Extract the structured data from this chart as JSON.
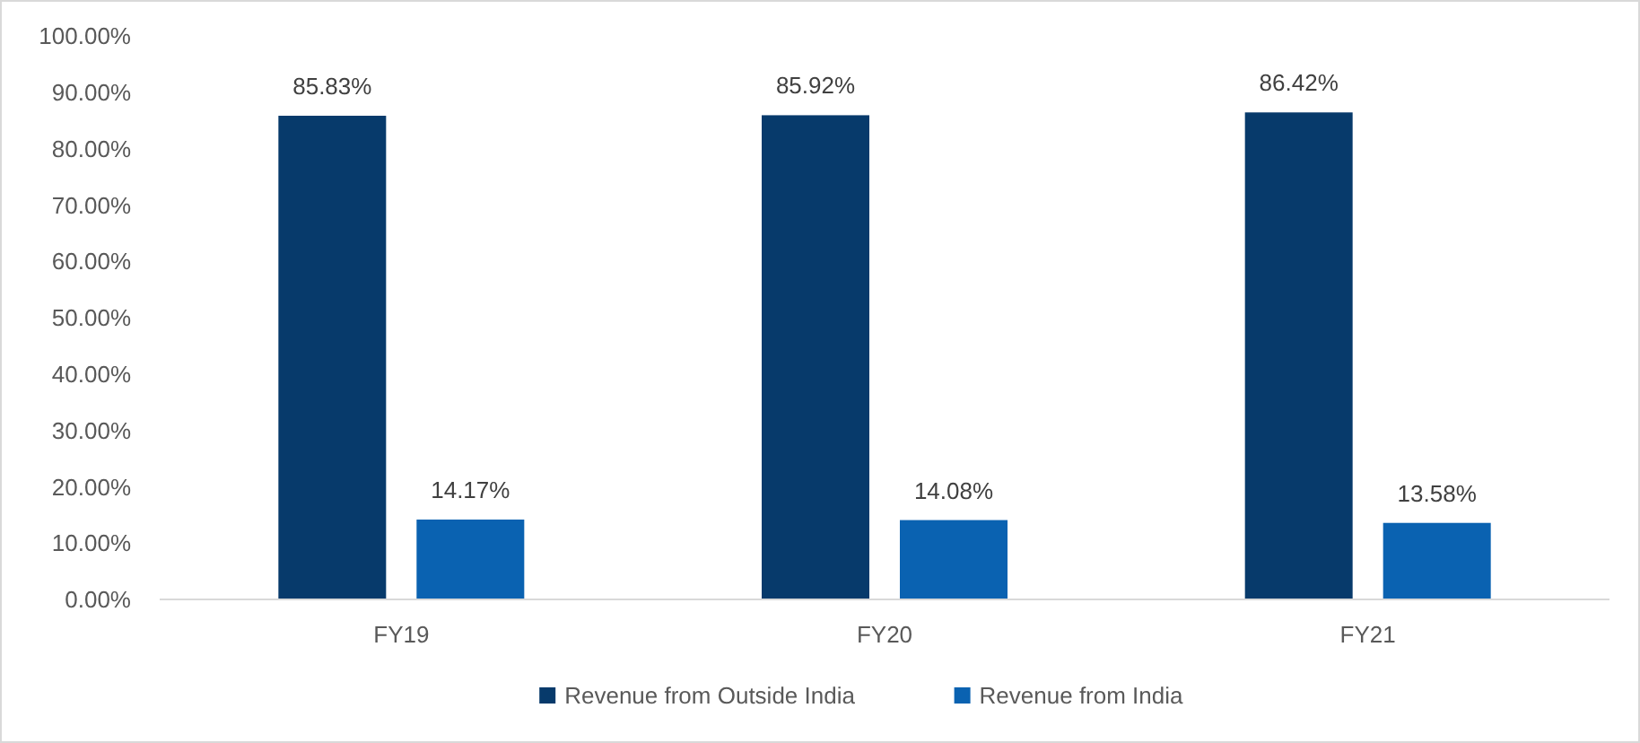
{
  "chart_data": {
    "type": "bar",
    "categories": [
      "FY19",
      "FY20",
      "FY21"
    ],
    "series": [
      {
        "name": "Revenue from Outside India",
        "color": "#073a6b",
        "values": [
          85.83,
          85.92,
          86.42
        ],
        "value_labels": [
          "85.83%",
          "85.92%",
          "86.42%"
        ]
      },
      {
        "name": "Revenue from India",
        "color": "#0a62b1",
        "values": [
          14.17,
          14.08,
          13.58
        ],
        "value_labels": [
          "14.17%",
          "14.08%",
          "13.58%"
        ]
      }
    ],
    "ylim": [
      0,
      100
    ],
    "yticks": [
      {
        "value": 0,
        "label": "0.00%"
      },
      {
        "value": 10,
        "label": "10.00%"
      },
      {
        "value": 20,
        "label": "20.00%"
      },
      {
        "value": 30,
        "label": "30.00%"
      },
      {
        "value": 40,
        "label": "40.00%"
      },
      {
        "value": 50,
        "label": "50.00%"
      },
      {
        "value": 60,
        "label": "60.00%"
      },
      {
        "value": 70,
        "label": "70.00%"
      },
      {
        "value": 80,
        "label": "80.00%"
      },
      {
        "value": 90,
        "label": "90.00%"
      },
      {
        "value": 100,
        "label": "100.00%"
      }
    ],
    "grid": false,
    "legend": "bottom"
  }
}
